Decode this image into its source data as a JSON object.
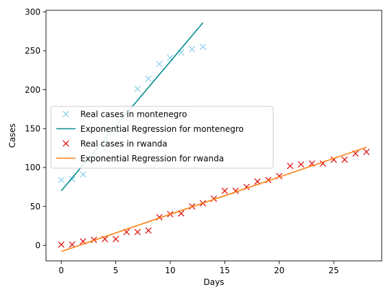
{
  "chart_data": {
    "type": "scatter",
    "title": "",
    "xlabel": "Days",
    "ylabel": "Cases",
    "xlim": [
      -1.4,
      29.4
    ],
    "ylim": [
      -20,
      302
    ],
    "x_ticks": [
      0,
      5,
      10,
      15,
      20,
      25
    ],
    "y_ticks": [
      0,
      50,
      100,
      150,
      200,
      250,
      300
    ],
    "grid": false,
    "legend_position": "center-left",
    "series": [
      {
        "name": "Real cases in montenegro",
        "kind": "markers",
        "marker": "x",
        "color": "#87CEEB",
        "x": [
          0,
          1,
          2,
          3,
          4,
          5,
          6,
          7,
          8,
          9,
          10,
          11,
          12,
          13
        ],
        "y": [
          84,
          85,
          91,
          105,
          123,
          145,
          172,
          201,
          214,
          233,
          241,
          248,
          252,
          255
        ]
      },
      {
        "name": "Exponential Regression for montenegro",
        "kind": "line",
        "color": "#008B8B",
        "x": [
          0,
          13
        ],
        "y": [
          70,
          286
        ]
      },
      {
        "name": "Real cases in rwanda",
        "kind": "markers",
        "marker": "x",
        "color": "#DD0000",
        "x": [
          0,
          1,
          2,
          3,
          4,
          5,
          6,
          7,
          8,
          9,
          10,
          11,
          12,
          13,
          14,
          15,
          16,
          17,
          18,
          19,
          20,
          21,
          22,
          23,
          24,
          25,
          26,
          27,
          28
        ],
        "y": [
          1,
          1,
          5,
          7,
          8,
          8,
          17,
          17,
          19,
          36,
          40,
          41,
          50,
          54,
          60,
          70,
          70,
          75,
          82,
          84,
          89,
          102,
          104,
          105,
          105,
          110,
          110,
          118,
          120
        ]
      },
      {
        "name": "Exponential Regression for rwanda",
        "kind": "line",
        "color": "#FF7F0E",
        "x": [
          0,
          28
        ],
        "y": [
          -8,
          126
        ]
      }
    ]
  }
}
